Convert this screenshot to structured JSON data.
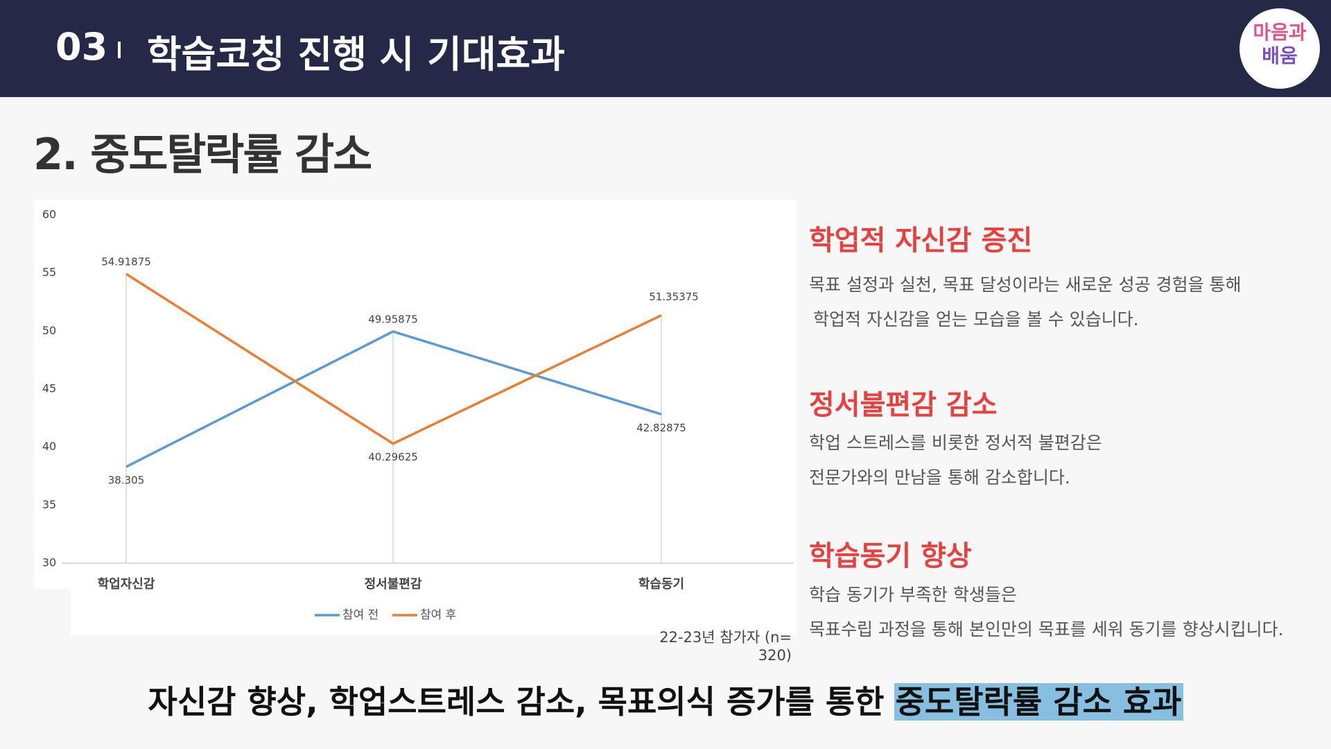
{
  "header": {
    "number": "03",
    "title": "학습코칭 진행 시 기대효과"
  },
  "logo": {
    "lines": [
      "마음과",
      "배움"
    ]
  },
  "subtitle": "2. 중도탈락률 감소",
  "chart_data": {
    "type": "line",
    "categories": [
      "학업자신감",
      "정서불편감",
      "학습동기"
    ],
    "series": [
      {
        "name": "참여 전",
        "color": "#5b9bd5",
        "values": [
          38.305,
          49.95875,
          42.82875
        ]
      },
      {
        "name": "참여 후",
        "color": "#ed7d31",
        "values": [
          54.91875,
          40.29625,
          51.35375
        ]
      }
    ],
    "ylim": [
      30,
      60
    ],
    "yticks": [
      30,
      35,
      40,
      45,
      50,
      55,
      60
    ],
    "grid": false,
    "legend": "bottom",
    "note": "22-23년 참가자 (n= 320)"
  },
  "sections": [
    {
      "heading": "학업적 자신감 증진",
      "lines": [
        "목표 설정과 실천, 목표 달성이라는 새로운 성공 경험을 통해",
        "학업적 자신감을 얻는 모습을 볼 수 있습니다."
      ]
    },
    {
      "heading": "정서불편감 감소",
      "lines": [
        "학업 스트레스를 비롯한 정서적 불편감은",
        "전문가와의 만남을 통해 감소합니다."
      ]
    },
    {
      "heading": "학습동기 향상",
      "lines": [
        "학습 동기가 부족한 학생들은",
        "목표수립 과정을 통해  본인만의 목표를 세워 동기를 향상시킵니다."
      ]
    }
  ],
  "bottom": {
    "text": "자신감 향상, 학업스트레스 감소, 목표의식 증가를 통한",
    "highlight": "중도탈락률 감소 효과"
  }
}
